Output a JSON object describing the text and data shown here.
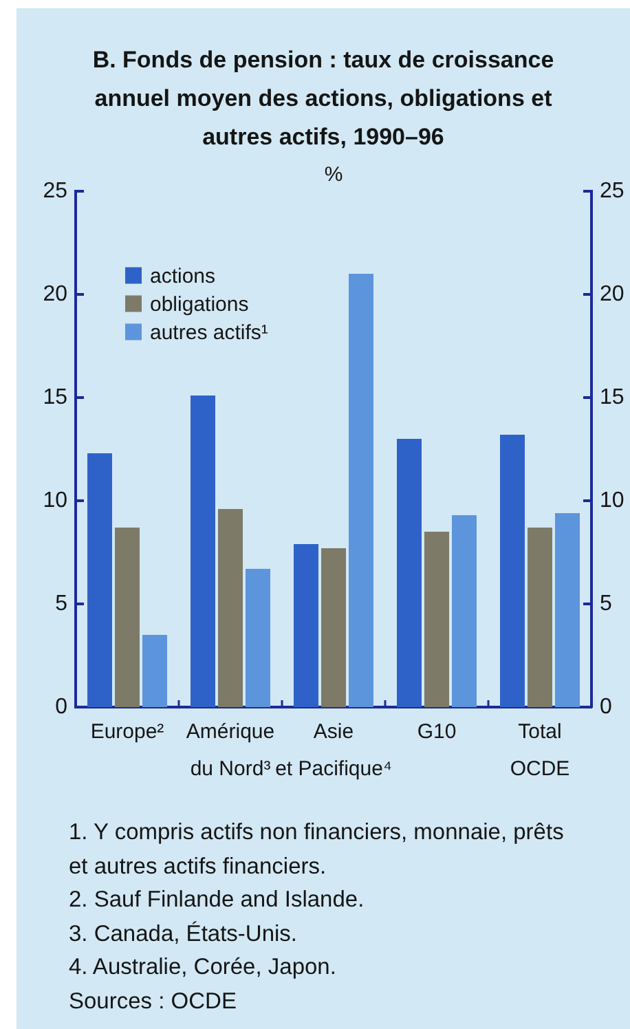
{
  "chart_data": {
    "type": "bar",
    "title": "B. Fonds de pension : taux de croissance annuel moyen des actions, obligations et autres actifs, 1990–96",
    "subtitle": "%",
    "categories": [
      "Europe²",
      "Amérique du Nord³",
      "Asie et Pacifique⁴",
      "G10",
      "Total OCDE"
    ],
    "series": [
      {
        "name": "actions",
        "color": "#2f62c9",
        "values": [
          12.3,
          15.1,
          7.9,
          13.0,
          13.2
        ]
      },
      {
        "name": "obligations",
        "color": "#7d7b68",
        "values": [
          8.7,
          9.6,
          7.7,
          8.5,
          8.7
        ]
      },
      {
        "name": "autres actifs¹",
        "color": "#5d95dc",
        "values": [
          3.5,
          6.7,
          21.0,
          9.3,
          9.4
        ]
      }
    ],
    "ylim": [
      0,
      25
    ],
    "yticks": [
      0,
      5,
      10,
      15,
      20,
      25
    ],
    "y2lim": [
      0,
      25
    ],
    "y2ticks": [
      0,
      5,
      10,
      15,
      20,
      25
    ],
    "legend": "top left",
    "annotations": [
      "1. Y compris actifs non financiers, monnaie, prêts et autres actifs financiers.",
      "2. Sauf Finlande and Islande.",
      "3. Canada, États-Unis.",
      "4. Australie, Corée, Japon.",
      "Sources : OCDE"
    ]
  }
}
